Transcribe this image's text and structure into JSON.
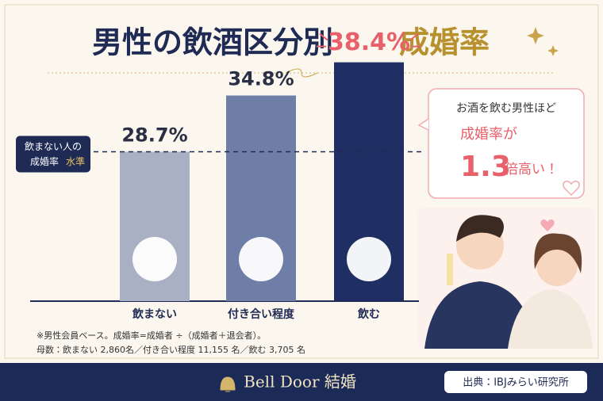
{
  "chart_data": {
    "type": "bar",
    "title": "男性の飲酒区分別",
    "title_highlight": "成婚率",
    "categories": [
      "飲まない",
      "付き合い程度",
      "飲む"
    ],
    "values": [
      28.7,
      34.8,
      38.4
    ],
    "value_labels": [
      "28.7%",
      "34.8%",
      "38.4%"
    ],
    "colors": [
      "#a9b0c4",
      "#6f7ea6",
      "#1f2f63"
    ],
    "ylim": [
      12.5,
      40
    ],
    "grid": false,
    "reference_label": [
      "飲まない人の",
      "成婚率",
      "水準"
    ],
    "callout": [
      "お酒を飲む男性ほど",
      "成婚率が",
      "1.3",
      "倍高い！"
    ],
    "notes": [
      "※男性会員ベース。成婚率=成婚者 ÷（成婚者＋退会者）。",
      "母数：飲まない 2,860名／付き合い程度 11,155 名／飲む 3,705 名"
    ]
  },
  "footer": {
    "brand": "Bell Door 結婚",
    "source": "出典：IBJみらい研究所"
  }
}
